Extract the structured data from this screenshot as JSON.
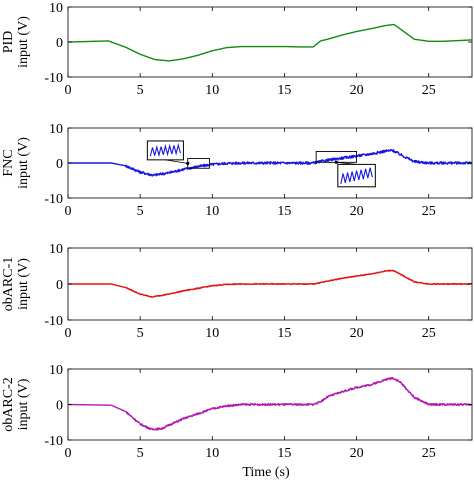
{
  "figure": {
    "xlabel": "Time (s)"
  },
  "chart_data": [
    {
      "type": "line",
      "ylabel": [
        "PID",
        "input (V)"
      ],
      "xlim": [
        0,
        28
      ],
      "ylim": [
        -10,
        10
      ],
      "xticks": [
        0,
        5,
        10,
        15,
        20,
        25
      ],
      "yticks": [
        -10,
        0,
        10
      ],
      "grid": false,
      "series": [
        {
          "color": "#138a13",
          "noise": 0,
          "x": [
            0,
            2.8,
            4,
            5,
            6,
            7,
            8,
            9,
            10,
            11,
            12,
            13,
            14,
            15,
            16,
            17,
            17.5,
            18,
            19,
            20,
            21,
            22,
            22.6,
            23,
            24,
            25,
            26,
            27,
            28
          ],
          "y": [
            0,
            0.3,
            -1.5,
            -3.5,
            -5.0,
            -5.4,
            -4.8,
            -3.8,
            -2.5,
            -1.6,
            -1.3,
            -1.3,
            -1.3,
            -1.3,
            -1.4,
            -1.4,
            0.3,
            0.8,
            2.0,
            3.0,
            3.8,
            4.7,
            5.0,
            3.8,
            0.8,
            0.2,
            0.2,
            0.4,
            0.6
          ]
        }
      ]
    },
    {
      "type": "line",
      "ylabel": [
        "FNC",
        "input (V)"
      ],
      "xlim": [
        0,
        28
      ],
      "ylim": [
        -10,
        10
      ],
      "xticks": [
        0,
        5,
        10,
        15,
        20,
        25
      ],
      "yticks": [
        -10,
        0,
        10
      ],
      "grid": false,
      "series": [
        {
          "color": "#1818e0",
          "noise": 0.35,
          "x": [
            0,
            3,
            4,
            5,
            5.9,
            7,
            8,
            9,
            10,
            11,
            12,
            13,
            14,
            15,
            16,
            17,
            17.5,
            18,
            19,
            20,
            21,
            22,
            22.5,
            23,
            24,
            25,
            26,
            27,
            28
          ],
          "y": [
            0,
            0,
            -0.8,
            -2.6,
            -3.5,
            -2.8,
            -1.8,
            -1.0,
            -0.4,
            -0.1,
            0,
            0,
            0,
            0,
            0,
            0,
            0.4,
            0.8,
            1.4,
            2.0,
            2.6,
            3.4,
            3.6,
            2.5,
            0.4,
            0,
            0,
            0,
            0
          ]
        }
      ]
    },
    {
      "type": "line",
      "ylabel": [
        "obARC-1",
        "input (V)"
      ],
      "xlim": [
        0,
        28
      ],
      "ylim": [
        -10,
        10
      ],
      "xticks": [
        0,
        5,
        10,
        15,
        20,
        25
      ],
      "yticks": [
        -10,
        0,
        10
      ],
      "grid": false,
      "series": [
        {
          "color": "#e01414",
          "noise": 0.12,
          "x": [
            0,
            3,
            4,
            5,
            5.8,
            7,
            8,
            9,
            10,
            11,
            12,
            13,
            14,
            15,
            16,
            17,
            17.5,
            18,
            19,
            20,
            21,
            22,
            22.5,
            23,
            24,
            25,
            26,
            27,
            28
          ],
          "y": [
            0,
            0,
            -1.0,
            -2.8,
            -3.6,
            -2.8,
            -1.9,
            -1.2,
            -0.5,
            -0.1,
            0,
            0,
            0,
            0,
            0,
            0,
            0.4,
            0.8,
            1.6,
            2.2,
            2.8,
            3.6,
            3.8,
            2.8,
            0.6,
            0,
            0,
            0,
            0
          ]
        }
      ]
    },
    {
      "type": "line",
      "ylabel": [
        "obARC-2",
        "input (V)"
      ],
      "xlim": [
        0,
        28
      ],
      "ylim": [
        -10,
        10
      ],
      "xticks": [
        0,
        5,
        10,
        15,
        20,
        25
      ],
      "yticks": [
        -10,
        0,
        10
      ],
      "grid": false,
      "series": [
        {
          "color": "#b019b0",
          "noise": 0.25,
          "x": [
            0,
            3,
            4,
            5,
            5.8,
            6.5,
            7,
            8,
            9,
            10,
            11,
            12,
            13,
            14,
            15,
            16,
            17,
            17.5,
            18,
            19,
            20,
            21,
            22,
            22.5,
            23,
            24,
            25,
            26,
            27,
            28
          ],
          "y": [
            0,
            -0.2,
            -2.0,
            -5.5,
            -7.0,
            -6.8,
            -5.8,
            -4.0,
            -2.6,
            -1.2,
            -0.4,
            0,
            0,
            0,
            0,
            0,
            0,
            0.8,
            2.2,
            3.6,
            4.8,
            5.6,
            7.0,
            7.5,
            6.4,
            2.0,
            0,
            0,
            0,
            0
          ]
        }
      ]
    }
  ],
  "insets": [
    {
      "panel": 1,
      "box_x": [
        8.3,
        9.8
      ],
      "box_y": [
        -1.5,
        1.3
      ],
      "zoom_x": [
        5.5,
        8.0
      ],
      "zoom_y": [
        6.3,
        0.9
      ],
      "color": "#1818e0"
    },
    {
      "panel": 1,
      "box_x": [
        17.2,
        20.0
      ],
      "box_y": [
        0.2,
        3.3
      ],
      "zoom_x": [
        18.7,
        21.3
      ],
      "zoom_y": [
        -0.4,
        -6.8
      ],
      "color": "#1818e0"
    }
  ]
}
